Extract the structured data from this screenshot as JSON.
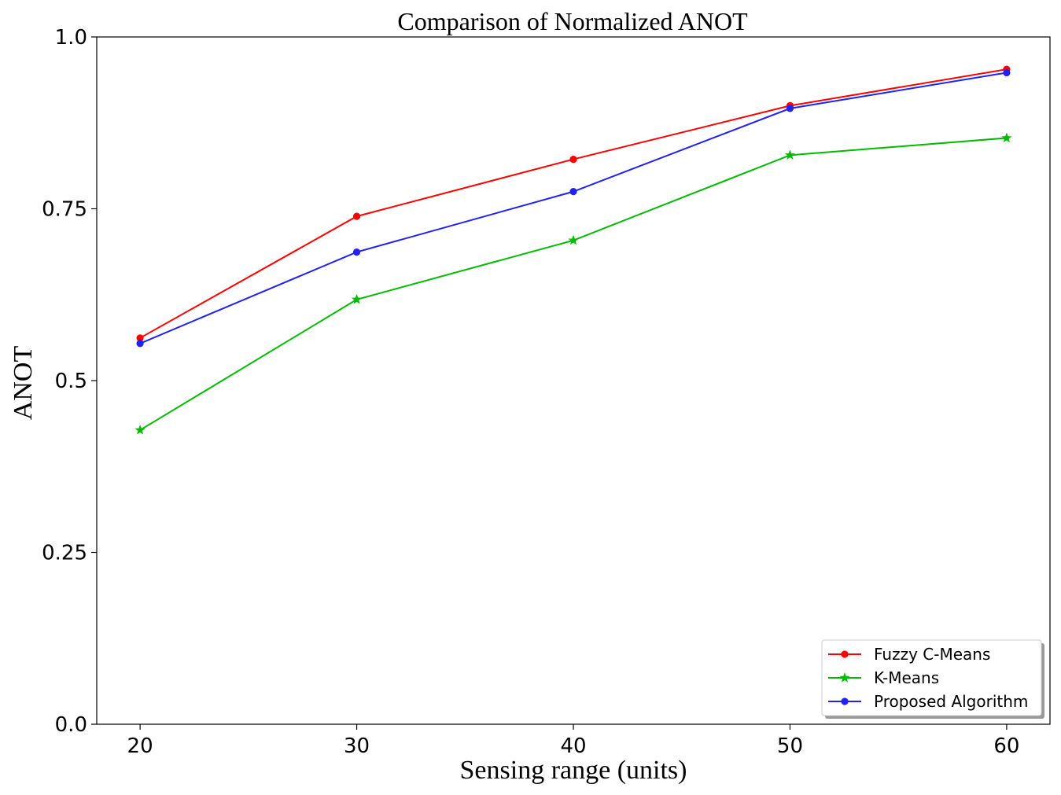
{
  "chart_data": {
    "type": "line",
    "title": "Comparison of Normalized ANOT",
    "xlabel": "Sensing range (units)",
    "ylabel": "ANOT",
    "x": [
      20,
      30,
      40,
      50,
      60
    ],
    "xlim": [
      18,
      62
    ],
    "ylim": [
      0,
      1
    ],
    "xticks": [
      20,
      30,
      40,
      50,
      60
    ],
    "xtick_labels": [
      "20",
      "30",
      "40",
      "50",
      "60"
    ],
    "yticks": [
      0,
      0.25,
      0.5,
      0.75,
      1.0
    ],
    "ytick_labels": [
      "0.0",
      "0.25",
      "0.5",
      "0.75",
      "1.0"
    ],
    "grid": false,
    "legend_position": "bottom-right",
    "series": [
      {
        "name": "Fuzzy C-Means",
        "color": "#ff0000",
        "marker": "circle",
        "values": [
          0.562,
          0.739,
          0.822,
          0.9,
          0.953
        ]
      },
      {
        "name": "K-Means",
        "color": "#00bb00",
        "marker": "star",
        "values": [
          0.428,
          0.618,
          0.704,
          0.828,
          0.853
        ]
      },
      {
        "name": "Proposed Algorithm",
        "color": "#2222ee",
        "marker": "circle",
        "values": [
          0.554,
          0.687,
          0.775,
          0.896,
          0.948
        ]
      }
    ]
  }
}
